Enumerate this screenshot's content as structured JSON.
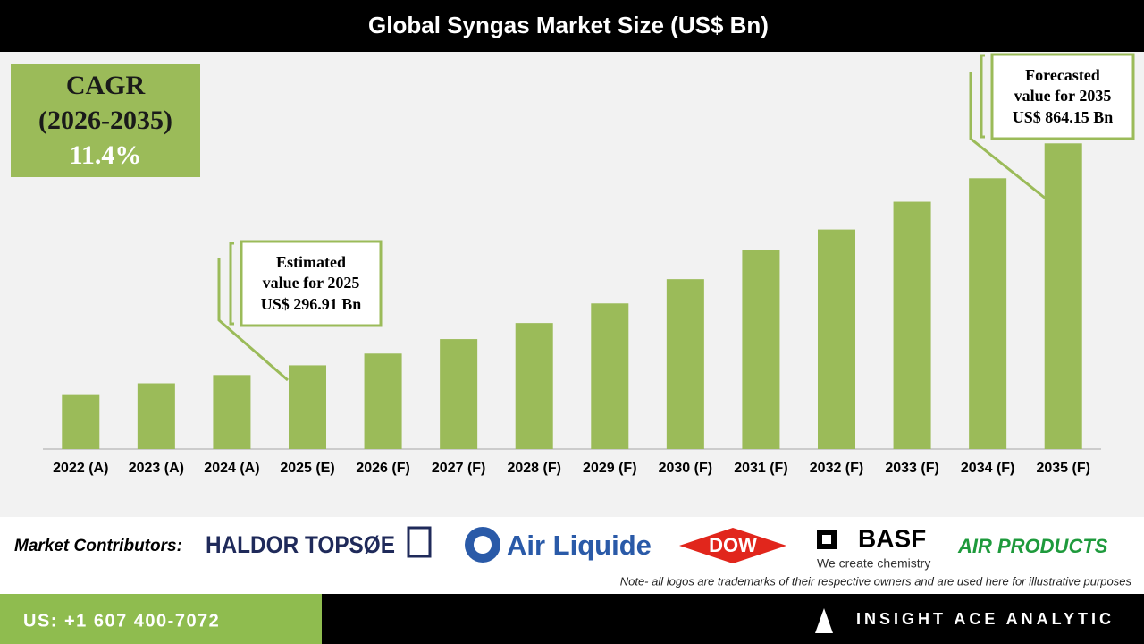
{
  "chart_data": {
    "type": "bar",
    "title": "Global Syngas Market Size (US$ Bn)",
    "categories": [
      "2022 (A)",
      "2023 (A)",
      "2024 (A)",
      "2025 (E)",
      "2026 (F)",
      "2027 (F)",
      "2028 (F)",
      "2029 (F)",
      "2030 (F)",
      "2031 (F)",
      "2032 (F)",
      "2033 (F)",
      "2034 (F)",
      "2035 (F)"
    ],
    "values": [
      221,
      251,
      272,
      296.91,
      327,
      364,
      405,
      455,
      517,
      591,
      644,
      715,
      775,
      864.15
    ],
    "color": "#9bbb59",
    "ylim": [
      83,
      1098
    ]
  },
  "cagr": {
    "label": "CAGR",
    "period": "(2026-2035)",
    "value": "11.4%"
  },
  "callouts": [
    {
      "lines": [
        "Estimated",
        "value for 2025",
        "US$ 296.91 Bn"
      ]
    },
    {
      "lines": [
        "Forecasted",
        "value for 2035",
        "US$ 864.15 Bn"
      ]
    }
  ],
  "contributors": {
    "label": "Market Contributors:",
    "logos": [
      "HALDOR TOPSØE",
      "Air Liquide",
      "DOW",
      "BASF",
      "We create chemistry",
      "AIR PRODUCTS"
    ]
  },
  "note": "Note- all logos are trademarks of their respective owners and are used here for illustrative purposes",
  "footer": {
    "phone": "US: +1 607 400-7072",
    "brand": "INSIGHT ACE ANALYTIC"
  }
}
